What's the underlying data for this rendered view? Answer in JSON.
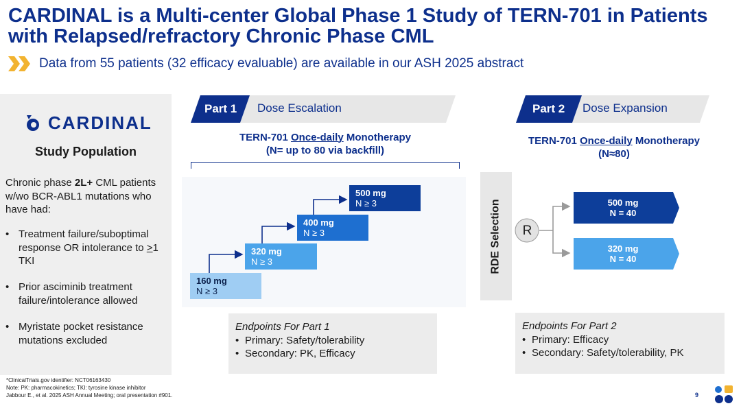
{
  "title": "CARDINAL is a Multi-center Global Phase 1 Study of TERN-701 in Patients with Relapsed/refractory Chronic Phase CML",
  "subtitle": "Data from 55 patients (32 efficacy evaluable) are available in our ASH 2025 abstract",
  "colors": {
    "navy": "#0d2f8c",
    "mid_blue": "#1e6fd0",
    "light_blue": "#5aaeee",
    "gold": "#f2b330"
  },
  "left_panel": {
    "logo_text": "CARDINAL",
    "heading": "Study Population",
    "intro_pre": "Chronic phase ",
    "intro_bold": "2L+",
    "intro_post": " CML patients w/wo BCR-ABL1 mutations who have had:",
    "bullet_char": "•",
    "bullet1_pre": "Treatment failure/suboptimal response OR intolerance to ",
    "bullet1_u": ">",
    "bullet1_post": "1 TKI",
    "bullet2": "Prior asciminib treatment failure/intolerance allowed",
    "bullet3": "Myristate pocket resistance mutations excluded"
  },
  "part1": {
    "label": "Part 1",
    "name": "Dose Escalation",
    "mono_pre": "TERN-701 ",
    "mono_u": "Once-daily",
    "mono_post": " Monotherapy",
    "mono_line2": "(N= up to 80 via backfill)",
    "doses": [
      {
        "dose": "160 mg",
        "n": "N ≥ 3"
      },
      {
        "dose": "320 mg",
        "n": "N ≥ 3"
      },
      {
        "dose": "400 mg",
        "n": "N ≥ 3"
      },
      {
        "dose": "500 mg",
        "n": "N ≥ 3"
      }
    ],
    "endpoints_title": "Endpoints For Part 1",
    "endpoints": [
      "Primary: Safety/tolerability",
      "Secondary: PK, Efficacy"
    ]
  },
  "rde_label": "RDE Selection",
  "randomize_label": "R",
  "part2": {
    "label": "Part 2",
    "name": "Dose Expansion",
    "mono_pre": "TERN-701 ",
    "mono_u": "Once-daily",
    "mono_post": " Monotherapy",
    "mono_line2": "(N≈80)",
    "arms": [
      {
        "dose": "500 mg",
        "n": "N = 40"
      },
      {
        "dose": "320 mg",
        "n": "N = 40"
      }
    ],
    "endpoints_title": "Endpoints For Part 2",
    "endpoints": [
      "Primary: Efficacy",
      "Secondary: Safety/tolerability, PK"
    ]
  },
  "footnotes": [
    "*ClinicalTrials.gov identifier: NCT06163430",
    "Note: PK: pharmacokinetics;  TKI: tyrosine kinase inhibitor",
    "Jabbour E., et al. 2025 ASH Annual Meeting; oral presentation #901."
  ],
  "page_number": "9"
}
